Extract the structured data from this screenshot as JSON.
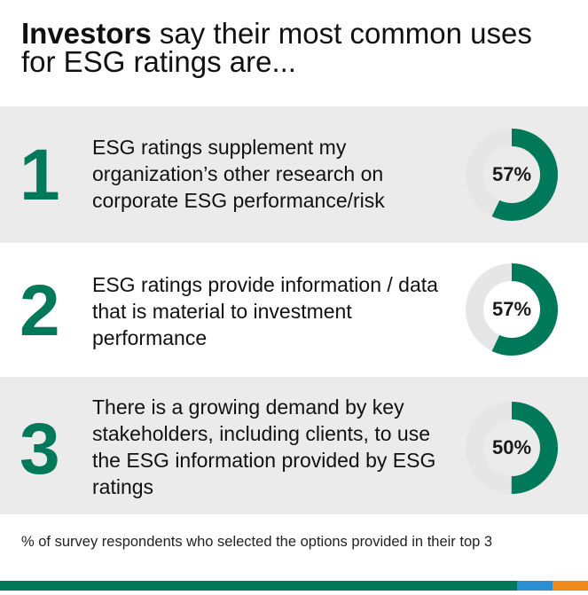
{
  "title": {
    "bold": "Investors",
    "rest": " say their most common uses",
    "line2": "for ESG ratings are..."
  },
  "items": [
    {
      "rank": "1",
      "text": "ESG ratings supplement my organization’s other research on corporate ESG performance/risk",
      "percent_label": "57%"
    },
    {
      "rank": "2",
      "text": "ESG ratings provide information / data that is material to investment performance",
      "percent_label": "57%"
    },
    {
      "rank": "3",
      "text": "There is a growing demand by key stakeholders, including clients, to use the ESG information provided by ESG ratings",
      "percent_label": "50%"
    }
  ],
  "footnote": "% of survey respondents who selected the options provided in their top 3",
  "colors": {
    "accent": "#00785a",
    "track": "#e6e6e6",
    "row_shade": "#ebebeb",
    "bar_blue": "#2b8fd6",
    "bar_orange": "#f08a1c"
  },
  "chart_data": {
    "type": "pie",
    "categories": [
      "ESG ratings supplement my organization’s other research on corporate ESG performance/risk",
      "ESG ratings provide information / data that is material to investment performance",
      "There is a growing demand by key stakeholders, including clients, to use the ESG information provided by ESG ratings"
    ],
    "values": [
      57,
      57,
      50
    ],
    "title": "Investors say their most common uses for ESG ratings are...",
    "unit": "%"
  }
}
